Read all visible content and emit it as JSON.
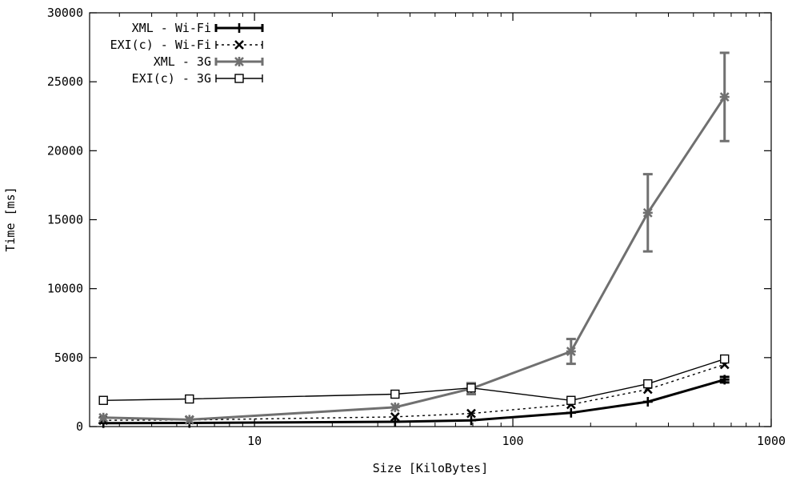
{
  "chart_data": {
    "type": "line",
    "xlabel": "Size [KiloBytes]",
    "ylabel": "Time [ms]",
    "xscale": "log",
    "xlim": [
      2.3,
      1000
    ],
    "ylim": [
      0,
      30000
    ],
    "xticks": [
      {
        "value": 10,
        "label": "10"
      },
      {
        "value": 100,
        "label": "100"
      },
      {
        "value": 1000,
        "label": "1000"
      }
    ],
    "yticks": [
      {
        "value": 0,
        "label": "0"
      },
      {
        "value": 5000,
        "label": "5000"
      },
      {
        "value": 10000,
        "label": "10000"
      },
      {
        "value": 15000,
        "label": "15000"
      },
      {
        "value": 20000,
        "label": "20000"
      },
      {
        "value": 25000,
        "label": "25000"
      },
      {
        "value": 30000,
        "label": "30000"
      }
    ],
    "grid": false,
    "legend_position": "top-left",
    "series": [
      {
        "name": "XML - Wi-Fi",
        "color": "#000000",
        "dash": "solid",
        "marker": "plus",
        "bold": true,
        "x": [
          2.6,
          5.6,
          35,
          69,
          168,
          333,
          660
        ],
        "y": [
          250,
          260,
          350,
          450,
          1000,
          1800,
          3400
        ],
        "yerr": [
          0,
          0,
          0,
          0,
          0,
          0,
          200
        ]
      },
      {
        "name": "EXI(c) - Wi-Fi",
        "color": "#000000",
        "dash": "dotted",
        "marker": "cross",
        "bold": false,
        "x": [
          2.6,
          5.6,
          35,
          69,
          168,
          333,
          660
        ],
        "y": [
          450,
          480,
          700,
          950,
          1600,
          2700,
          4500
        ],
        "yerr": [
          0,
          0,
          0,
          0,
          0,
          0,
          0
        ]
      },
      {
        "name": "XML - 3G",
        "color": "#707070",
        "dash": "solid",
        "marker": "star",
        "bold": true,
        "x": [
          2.6,
          5.6,
          35,
          69,
          168,
          333,
          660
        ],
        "y": [
          650,
          500,
          1400,
          2750,
          5450,
          15500,
          23900
        ],
        "yerr": [
          0,
          0,
          0,
          400,
          900,
          2800,
          3200
        ]
      },
      {
        "name": "EXI(c) - 3G",
        "color": "#000000",
        "dash": "solid",
        "marker": "square",
        "bold": false,
        "x": [
          2.6,
          5.6,
          35,
          69,
          168,
          333,
          660
        ],
        "y": [
          1900,
          2000,
          2350,
          2800,
          1900,
          3100,
          4900
        ],
        "yerr": [
          0,
          0,
          0,
          0,
          0,
          0,
          0
        ]
      }
    ]
  }
}
